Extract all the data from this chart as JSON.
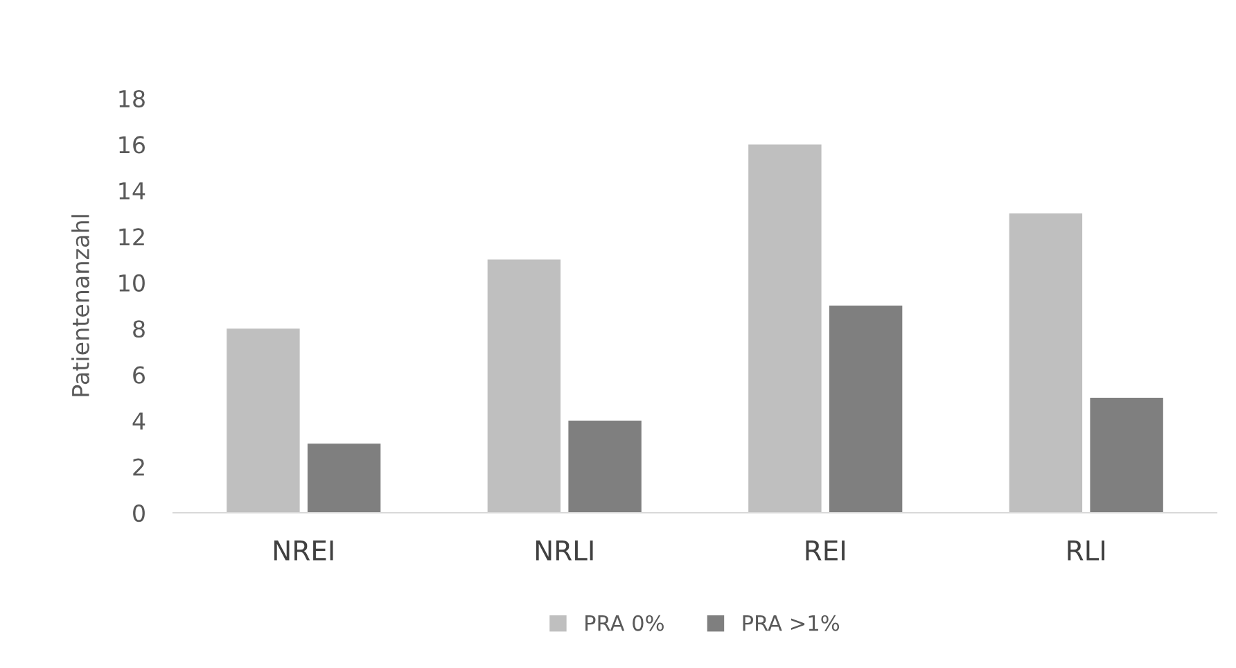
{
  "chart_data": {
    "type": "bar",
    "ylabel": "Patientenanzahl",
    "categories": [
      "NREI",
      "NRLI",
      "REI",
      "RLI"
    ],
    "series": [
      {
        "name": "PRA 0%",
        "color": "#bfbfbf",
        "values": [
          8,
          11,
          16,
          13
        ]
      },
      {
        "name": "PRA >1%",
        "color": "#7f7f7f",
        "values": [
          3,
          4,
          9,
          5
        ]
      }
    ],
    "ylim": [
      0,
      18
    ],
    "yticks": [
      0,
      2,
      4,
      6,
      8,
      10,
      12,
      14,
      16,
      18
    ],
    "grid": false,
    "legend": "bottom"
  }
}
